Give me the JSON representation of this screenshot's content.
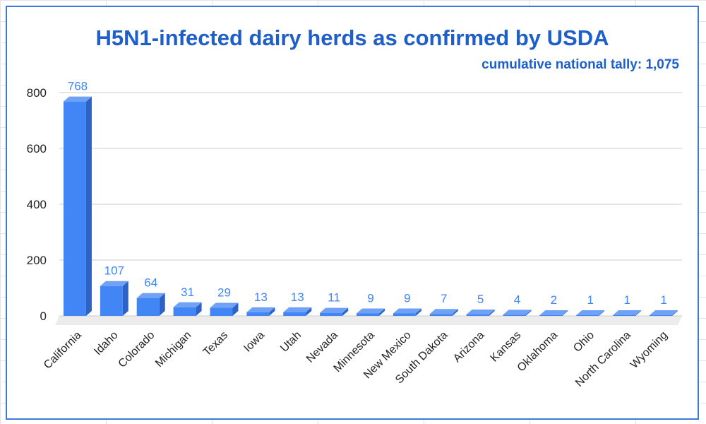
{
  "chart_data": {
    "type": "bar",
    "title": "H5N1-infected dairy herds as confirmed by USDA",
    "subtitle": "cumulative national tally: 1,075",
    "xlabel": "",
    "ylabel": "",
    "ylim": [
      0,
      800
    ],
    "yticks": [
      0,
      200,
      400,
      600,
      800
    ],
    "grid": true,
    "legend": "none",
    "bar_style": "3d",
    "colors": {
      "bar_front": "#4285f4",
      "bar_top": "#6fa2f7",
      "bar_side": "#2e62c4",
      "data_label": "#4285f4",
      "title": "#1f5fc9",
      "floor": "#ececec"
    },
    "categories": [
      "California",
      "Idaho",
      "Colorado",
      "Michigan",
      "Texas",
      "Iowa",
      "Utah",
      "Nevada",
      "Minnesota",
      "New Mexico",
      "South Dakota",
      "Arizona",
      "Kansas",
      "Oklahoma",
      "Ohio",
      "North Carolina",
      "Wyoming"
    ],
    "values": [
      768,
      107,
      64,
      31,
      29,
      13,
      13,
      11,
      9,
      9,
      7,
      5,
      4,
      2,
      1,
      1,
      1
    ],
    "data_labels": [
      "768",
      "107",
      "64",
      "31",
      "29",
      "13",
      "13",
      "11",
      "9",
      "9",
      "7",
      "5",
      "4",
      "2",
      "1",
      "1",
      "1"
    ]
  }
}
